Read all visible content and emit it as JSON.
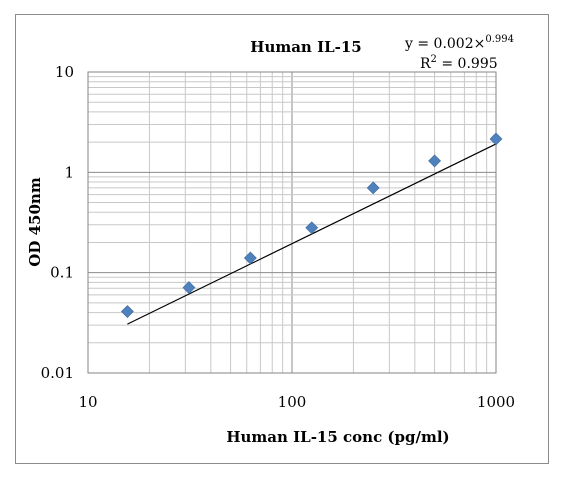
{
  "chart_data": {
    "type": "scatter",
    "title": "Human IL-15",
    "xlabel": "Human IL-15 conc (pg/ml)",
    "ylabel": "OD 450nm",
    "x_scale": "log",
    "y_scale": "log",
    "xlim": [
      10,
      1000
    ],
    "ylim": [
      0.01,
      10
    ],
    "x_ticks": [
      "10",
      "100",
      "1000"
    ],
    "y_ticks": [
      "0.01",
      "0.1",
      "1",
      "10"
    ],
    "grid": "major and minor",
    "series": [
      {
        "x": [
          15.6,
          31.25,
          62.5,
          125,
          250,
          500,
          1000
        ],
        "y": [
          0.041,
          0.071,
          0.14,
          0.28,
          0.7,
          1.3,
          2.15
        ],
        "marker": "diamond",
        "color": "#4f81bd"
      }
    ],
    "trendline": {
      "type": "power",
      "coefficient": 0.002,
      "exponent": 0.994,
      "x_range": [
        15.6,
        1000
      ],
      "color": "#000000"
    },
    "equation": {
      "prefix": "y = 0.002×",
      "exponent": "0.994",
      "r2_prefix": "R",
      "r2_super": "2",
      "r2_value": " = 0.995"
    }
  }
}
